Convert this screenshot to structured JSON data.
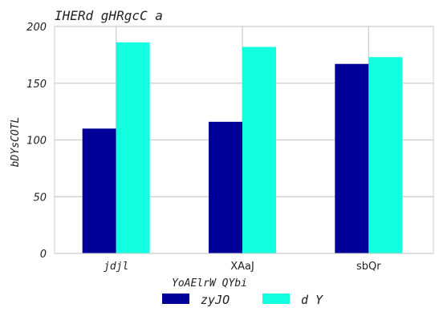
{
  "chart_data": {
    "type": "bar",
    "title": "IHERd gHRgcC a",
    "xlabel": "YoAElrW QYbi",
    "ylabel": "bDYsCOTL",
    "categories": [
      "jdjl",
      "XAaJ",
      "sbQr"
    ],
    "series": [
      {
        "name": "zyJO",
        "color": "#000099",
        "values": [
          110,
          116,
          167
        ]
      },
      {
        "name": "d Y",
        "color": "#14ffe0",
        "values": [
          186,
          182,
          173
        ]
      }
    ],
    "ylim": [
      0,
      200
    ],
    "yticks": [
      0,
      50,
      100,
      150,
      200
    ],
    "grid": true,
    "legend_position": "bottom-center"
  }
}
